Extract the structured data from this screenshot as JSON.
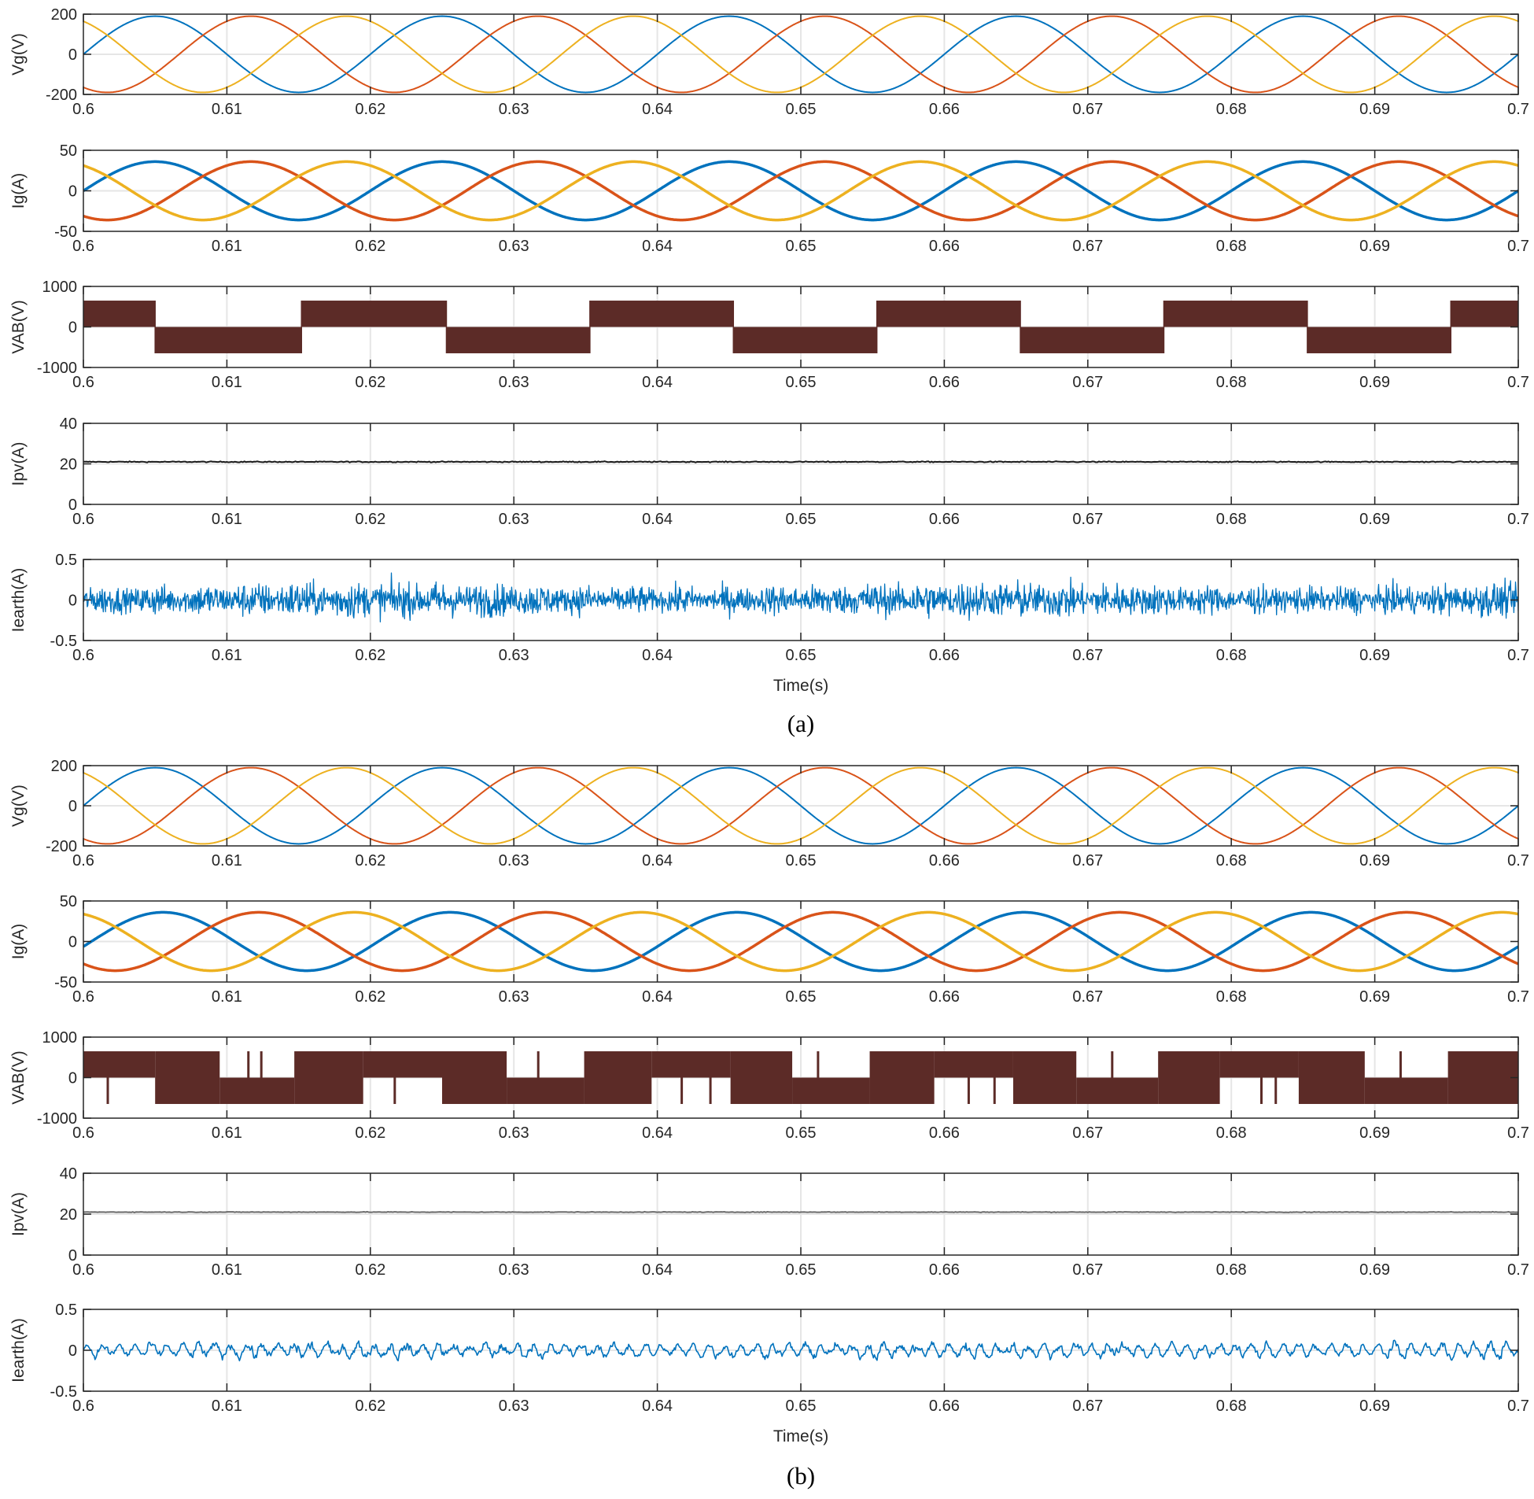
{
  "colors": {
    "phase_a": "#0072BD",
    "phase_b": "#D95319",
    "phase_c": "#EDB120",
    "vab": "#5C2B27",
    "ipv": "#1a1a1a",
    "ipv_b": "#6a6a6a",
    "ierth": "#0072BD",
    "grid": "#e6e6e6",
    "axes": "#262626"
  },
  "chart_data": [
    {
      "panel": "(a)",
      "caption": "(a)",
      "xlabel": "Time(s)",
      "xlim": [
        0.6,
        0.7
      ],
      "xticks": [
        "0.6",
        "0.61",
        "0.62",
        "0.63",
        "0.64",
        "0.65",
        "0.66",
        "0.67",
        "0.68",
        "0.69",
        "0.7"
      ],
      "subplots": [
        {
          "type": "line",
          "ylabel": "Vg(V)",
          "ylim": [
            -200,
            200
          ],
          "yticks": [
            "-200",
            "0",
            "200"
          ],
          "series": [
            {
              "kind": "sine",
              "amplitude": 190,
              "frequency_hz": 50,
              "phase_deg": 0,
              "color_key": "phase_a",
              "stroke": 2
            },
            {
              "kind": "sine",
              "amplitude": 190,
              "frequency_hz": 50,
              "phase_deg": -120,
              "color_key": "phase_b",
              "stroke": 2
            },
            {
              "kind": "sine",
              "amplitude": 190,
              "frequency_hz": 50,
              "phase_deg": 120,
              "color_key": "phase_c",
              "stroke": 2
            }
          ]
        },
        {
          "type": "line",
          "ylabel": "Ig(A)",
          "ylim": [
            -50,
            50
          ],
          "yticks": [
            "-50",
            "0",
            "50"
          ],
          "series": [
            {
              "kind": "sine",
              "amplitude": 36,
              "frequency_hz": 50,
              "phase_deg": 0,
              "color_key": "phase_a",
              "stroke": 3.5
            },
            {
              "kind": "sine",
              "amplitude": 36,
              "frequency_hz": 50,
              "phase_deg": -120,
              "color_key": "phase_b",
              "stroke": 3.5
            },
            {
              "kind": "sine",
              "amplitude": 36,
              "frequency_hz": 50,
              "phase_deg": 120,
              "color_key": "phase_c",
              "stroke": 3.5
            }
          ]
        },
        {
          "type": "area",
          "ylabel": "VAB(V)",
          "ylim": [
            -1000,
            1000
          ],
          "yticks": [
            "-1000",
            "0",
            "1000"
          ],
          "series": [
            {
              "kind": "square",
              "level": 650,
              "frequency_hz": 50,
              "color_key": "vab",
              "ranges": [
                {
                  "from": 0.6,
                  "to": 0.605,
                  "value": 650
                },
                {
                  "from": 0.605,
                  "to": 0.6152,
                  "value": -650
                },
                {
                  "from": 0.6152,
                  "to": 0.6253,
                  "value": 650
                },
                {
                  "from": 0.6253,
                  "to": 0.6353,
                  "value": -650
                },
                {
                  "from": 0.6353,
                  "to": 0.6453,
                  "value": 650
                },
                {
                  "from": 0.6453,
                  "to": 0.6553,
                  "value": -650
                },
                {
                  "from": 0.6553,
                  "to": 0.6653,
                  "value": 650
                },
                {
                  "from": 0.6653,
                  "to": 0.6753,
                  "value": -650
                },
                {
                  "from": 0.6753,
                  "to": 0.6853,
                  "value": 650
                },
                {
                  "from": 0.6853,
                  "to": 0.6953,
                  "value": -650
                },
                {
                  "from": 0.6953,
                  "to": 0.7,
                  "value": 650
                }
              ]
            }
          ]
        },
        {
          "type": "line",
          "ylabel": "Ipv(A)",
          "ylim": [
            0,
            40
          ],
          "yticks": [
            "0",
            "20",
            "40"
          ],
          "series": [
            {
              "kind": "constant",
              "value": 21,
              "noise": 0.4,
              "color_key": "ipv",
              "stroke": 2
            }
          ]
        },
        {
          "type": "line",
          "ylabel": "Iearth(A)",
          "ylim": [
            -0.5,
            0.5
          ],
          "yticks": [
            "-0.5",
            "0",
            "0.5"
          ],
          "series": [
            {
              "kind": "noise",
              "max_abs": 0.5,
              "typical_abs": 0.3,
              "color_key": "ierth",
              "stroke": 1.3
            }
          ]
        }
      ]
    },
    {
      "panel": "(b)",
      "caption": "(b)",
      "xlabel": "Time(s)",
      "xlim": [
        0.6,
        0.7
      ],
      "xticks": [
        "0.6",
        "0.61",
        "0.62",
        "0.63",
        "0.64",
        "0.65",
        "0.66",
        "0.67",
        "0.68",
        "0.69",
        "0.7"
      ],
      "subplots": [
        {
          "type": "line",
          "ylabel": "Vg(V)",
          "ylim": [
            -200,
            200
          ],
          "yticks": [
            "-200",
            "0",
            "200"
          ],
          "series": [
            {
              "kind": "sine",
              "amplitude": 190,
              "frequency_hz": 50,
              "phase_deg": 0,
              "color_key": "phase_a",
              "stroke": 2
            },
            {
              "kind": "sine",
              "amplitude": 190,
              "frequency_hz": 50,
              "phase_deg": -120,
              "color_key": "phase_b",
              "stroke": 2
            },
            {
              "kind": "sine",
              "amplitude": 190,
              "frequency_hz": 50,
              "phase_deg": 120,
              "color_key": "phase_c",
              "stroke": 2
            }
          ]
        },
        {
          "type": "line",
          "ylabel": "Ig(A)",
          "ylim": [
            -50,
            50
          ],
          "yticks": [
            "-50",
            "0",
            "50"
          ],
          "series": [
            {
              "kind": "sine",
              "amplitude": 36,
              "frequency_hz": 50,
              "phase_deg": -10,
              "color_key": "phase_a",
              "stroke": 3.5
            },
            {
              "kind": "sine",
              "amplitude": 36,
              "frequency_hz": 50,
              "phase_deg": -130,
              "color_key": "phase_b",
              "stroke": 3.5
            },
            {
              "kind": "sine",
              "amplitude": 36,
              "frequency_hz": 50,
              "phase_deg": 110,
              "color_key": "phase_c",
              "stroke": 3.5
            }
          ]
        },
        {
          "type": "area",
          "ylabel": "VAB(V)",
          "ylim": [
            -1000,
            1000
          ],
          "yticks": [
            "-1000",
            "0",
            "1000"
          ],
          "series": [
            {
              "kind": "three-level",
              "level": 650,
              "frequency_hz": 50,
              "color_key": "vab",
              "ranges": [
                {
                  "from": 0.6,
                  "to": 0.605,
                  "low": 0,
                  "high": 650
                },
                {
                  "from": 0.605,
                  "to": 0.6095,
                  "low": -650,
                  "high": 650
                },
                {
                  "from": 0.6095,
                  "to": 0.6147,
                  "low": -650,
                  "high": 0
                },
                {
                  "from": 0.6147,
                  "to": 0.6195,
                  "low": -650,
                  "high": 650
                },
                {
                  "from": 0.6195,
                  "to": 0.625,
                  "low": 0,
                  "high": 650
                },
                {
                  "from": 0.625,
                  "to": 0.6295,
                  "low": -650,
                  "high": 650
                },
                {
                  "from": 0.6295,
                  "to": 0.6349,
                  "low": -650,
                  "high": 0
                },
                {
                  "from": 0.6349,
                  "to": 0.6396,
                  "low": -650,
                  "high": 650
                },
                {
                  "from": 0.6396,
                  "to": 0.6451,
                  "low": 0,
                  "high": 650
                },
                {
                  "from": 0.6451,
                  "to": 0.6494,
                  "low": -650,
                  "high": 650
                },
                {
                  "from": 0.6494,
                  "to": 0.6548,
                  "low": -650,
                  "high": 0
                },
                {
                  "from": 0.6548,
                  "to": 0.6593,
                  "low": -650,
                  "high": 650
                },
                {
                  "from": 0.6593,
                  "to": 0.6648,
                  "low": 0,
                  "high": 650
                },
                {
                  "from": 0.6648,
                  "to": 0.6692,
                  "low": -650,
                  "high": 650
                },
                {
                  "from": 0.6692,
                  "to": 0.6749,
                  "low": -650,
                  "high": 0
                },
                {
                  "from": 0.6749,
                  "to": 0.6792,
                  "low": -650,
                  "high": 650
                },
                {
                  "from": 0.6792,
                  "to": 0.6847,
                  "low": 0,
                  "high": 650
                },
                {
                  "from": 0.6847,
                  "to": 0.6893,
                  "low": -650,
                  "high": 650
                },
                {
                  "from": 0.6893,
                  "to": 0.6951,
                  "low": -650,
                  "high": 0
                },
                {
                  "from": 0.6951,
                  "to": 0.7,
                  "low": -650,
                  "high": 650
                }
              ],
              "spikes": [
                {
                  "t": 0.6017,
                  "from": 0,
                  "to": -650
                },
                {
                  "t": 0.6115,
                  "from": 0,
                  "to": 650
                },
                {
                  "t": 0.6124,
                  "from": 0,
                  "to": 650
                },
                {
                  "t": 0.6217,
                  "from": -650,
                  "to": 0
                },
                {
                  "t": 0.6317,
                  "from": 0,
                  "to": 650
                },
                {
                  "t": 0.6417,
                  "from": 0,
                  "to": -650
                },
                {
                  "t": 0.6437,
                  "from": 0,
                  "to": -650
                },
                {
                  "t": 0.6512,
                  "from": 0,
                  "to": 650
                },
                {
                  "t": 0.6617,
                  "from": 0,
                  "to": -650
                },
                {
                  "t": 0.6635,
                  "from": 0,
                  "to": -650
                },
                {
                  "t": 0.6717,
                  "from": 0,
                  "to": 650
                },
                {
                  "t": 0.6821,
                  "from": 0,
                  "to": -650
                },
                {
                  "t": 0.6831,
                  "from": 0,
                  "to": -650
                },
                {
                  "t": 0.6918,
                  "from": 0,
                  "to": 650
                }
              ]
            }
          ]
        },
        {
          "type": "line",
          "ylabel": "Ipv(A)",
          "ylim": [
            0,
            40
          ],
          "yticks": [
            "0",
            "20",
            "40"
          ],
          "series": [
            {
              "kind": "constant",
              "value": 21,
              "noise": 0.25,
              "color_key": "ipv_b",
              "stroke": 2
            }
          ]
        },
        {
          "type": "line",
          "ylabel": "Iearth(A)",
          "ylim": [
            -0.5,
            0.5
          ],
          "yticks": [
            "-0.5",
            "0",
            "0.5"
          ],
          "series": [
            {
              "kind": "noise",
              "max_abs": 0.35,
              "typical_abs": 0.12,
              "color_key": "ierth",
              "stroke": 1.6
            }
          ]
        }
      ]
    }
  ]
}
